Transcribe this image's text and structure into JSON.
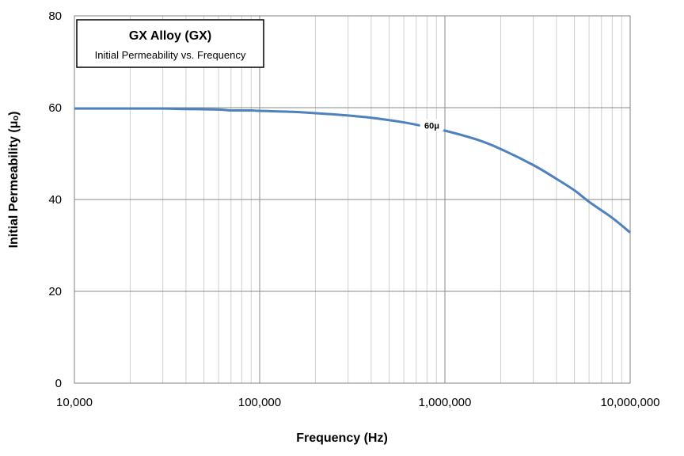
{
  "chart_data": {
    "type": "line",
    "title": "GX Alloy  (GX)",
    "subtitle": "Initial Permeability vs. Frequency",
    "xlabel": "Frequency (Hz)",
    "ylabel": "Initial Permeability (μₒ)",
    "xscale": "log",
    "xlim": [
      10000,
      10000000
    ],
    "ylim": [
      0,
      80
    ],
    "x_ticks": [
      10000,
      100000,
      1000000,
      10000000
    ],
    "x_tick_labels": [
      "10,000",
      "100,000",
      "1,000,000",
      "10,000,000"
    ],
    "y_ticks": [
      0,
      20,
      40,
      60,
      80
    ],
    "y_tick_labels": [
      "0",
      "20",
      "40",
      "60",
      "80"
    ],
    "grid": true,
    "legend": "none",
    "series": [
      {
        "label": "60μ",
        "color": "#4f81bd",
        "x": [
          10000,
          20000,
          30000,
          40000,
          60000,
          70000,
          90000,
          100000,
          150000,
          200000,
          300000,
          400000,
          600000,
          800000,
          1000000,
          1500000,
          2000000,
          3000000,
          4000000,
          5000000,
          6000000,
          8000000,
          10000000
        ],
        "y": [
          59.8,
          59.8,
          59.8,
          59.7,
          59.6,
          59.4,
          59.4,
          59.3,
          59.1,
          58.8,
          58.3,
          57.8,
          56.8,
          55.8,
          55.0,
          53.0,
          51.0,
          47.5,
          44.5,
          42.0,
          39.5,
          36.0,
          32.8
        ]
      }
    ]
  }
}
